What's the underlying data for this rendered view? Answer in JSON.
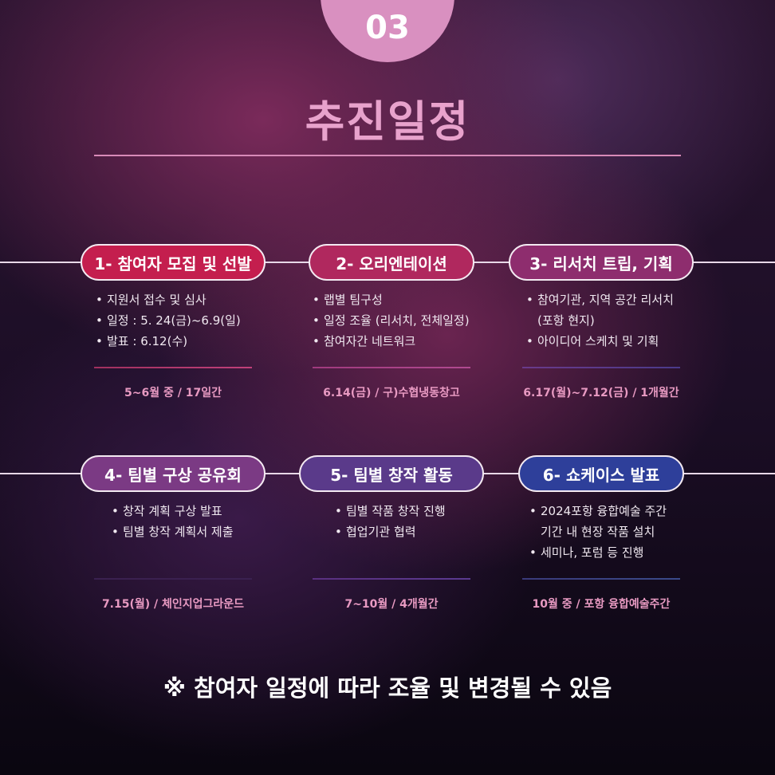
{
  "header": {
    "number": "03",
    "title": "추진일정"
  },
  "steps": [
    {
      "label": "1- 참여자 모집 및 선발",
      "color": "#c41e4e",
      "bullets": [
        "지원서 접수 및 심사",
        "일정 : 5. 24(금)~6.9(일)",
        "발표 : 6.12(수)"
      ],
      "date": "5~6월 중 / 17일간"
    },
    {
      "label": "2- 오리엔테이션",
      "color": "#b0285e",
      "bullets": [
        "랩별 팀구성",
        "일정 조율 (리서치, 전체일정)",
        "참여자간 네트워크"
      ],
      "date": "6.14(금) / 구)수협냉동창고"
    },
    {
      "label": "3- 리서치 트립, 기획",
      "color": "#8e2d6e",
      "bullets": [
        "참여기관, 지역 공간 리서치",
        "(포항 현지)",
        "아이디어 스케치 및 기획"
      ],
      "date": "6.17(월)~7.12(금) / 1개월간"
    },
    {
      "label": "4- 팀별 구상 공유회",
      "color": "#7b3a84",
      "bullets": [
        "창작 계획 구상 발표",
        "팀별 창작 계획서 제출"
      ],
      "date": "7.15(월) / 체인지업그라운드"
    },
    {
      "label": "5- 팀별 창작 활동",
      "color": "#5a3a8a",
      "bullets": [
        "팀별 작품 창작 진행",
        "협업기관 협력"
      ],
      "date": "7~10월 / 4개월간"
    },
    {
      "label": "6- 쇼케이스 발표",
      "color": "#2e3f9a",
      "bullets": [
        "2024포항 융합예술 주간",
        "기간 내 현장 작품 설치",
        "세미나, 포럼 등 진행"
      ],
      "date": "10월 중 / 포항 융합예술주간"
    }
  ],
  "note": "※ 참여자 일정에 따라 조율 및 변경될 수 있음"
}
